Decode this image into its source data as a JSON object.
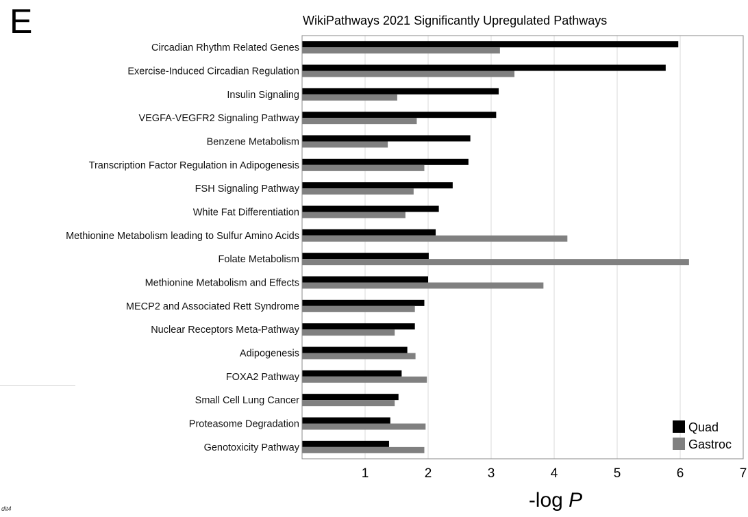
{
  "panel_letter": "E",
  "stray_mark": "dit4",
  "chart_data": {
    "type": "bar",
    "orientation": "horizontal",
    "title": "WikiPathways 2021 Significantly Upregulated Pathways",
    "xlabel_main": "-log ",
    "xlabel_italic": "P",
    "ylabel": "",
    "xlim": [
      0,
      7
    ],
    "xticks": [
      1,
      2,
      3,
      4,
      5,
      6,
      7
    ],
    "grid": "vertical",
    "legend_position": "bottom-right",
    "categories": [
      "Circadian Rhythm Related Genes",
      "Exercise-Induced Circadian Regulation",
      "Insulin Signaling",
      "VEGFA-VEGFR2 Signaling Pathway",
      "Benzene Metabolism",
      "Transcription Factor Regulation in Adipogenesis",
      "FSH Signaling Pathway",
      "White Fat Differentiation",
      "Methionine Metabolism leading to Sulfur Amino Acids",
      "Folate Metabolism",
      "Methionine Metabolism and Effects",
      "MECP2 and Associated Rett Syndrome",
      "Nuclear Receptors Meta-Pathway",
      "Adipogenesis",
      "FOXA2 Pathway",
      "Small Cell Lung Cancer",
      "Proteasome Degradation",
      "Genotoxicity Pathway"
    ],
    "series": [
      {
        "name": "Quad",
        "color": "#000000",
        "values": [
          5.97,
          5.77,
          3.12,
          3.08,
          2.67,
          2.64,
          2.39,
          2.17,
          2.12,
          2.01,
          2.0,
          1.94,
          1.79,
          1.67,
          1.58,
          1.53,
          1.4,
          1.38
        ]
      },
      {
        "name": "Gastroc",
        "color": "#808080",
        "values": [
          3.14,
          3.37,
          1.51,
          1.82,
          1.36,
          1.94,
          1.77,
          1.64,
          4.21,
          6.14,
          3.83,
          1.79,
          1.47,
          1.8,
          1.98,
          1.47,
          1.96,
          1.94
        ]
      }
    ]
  }
}
